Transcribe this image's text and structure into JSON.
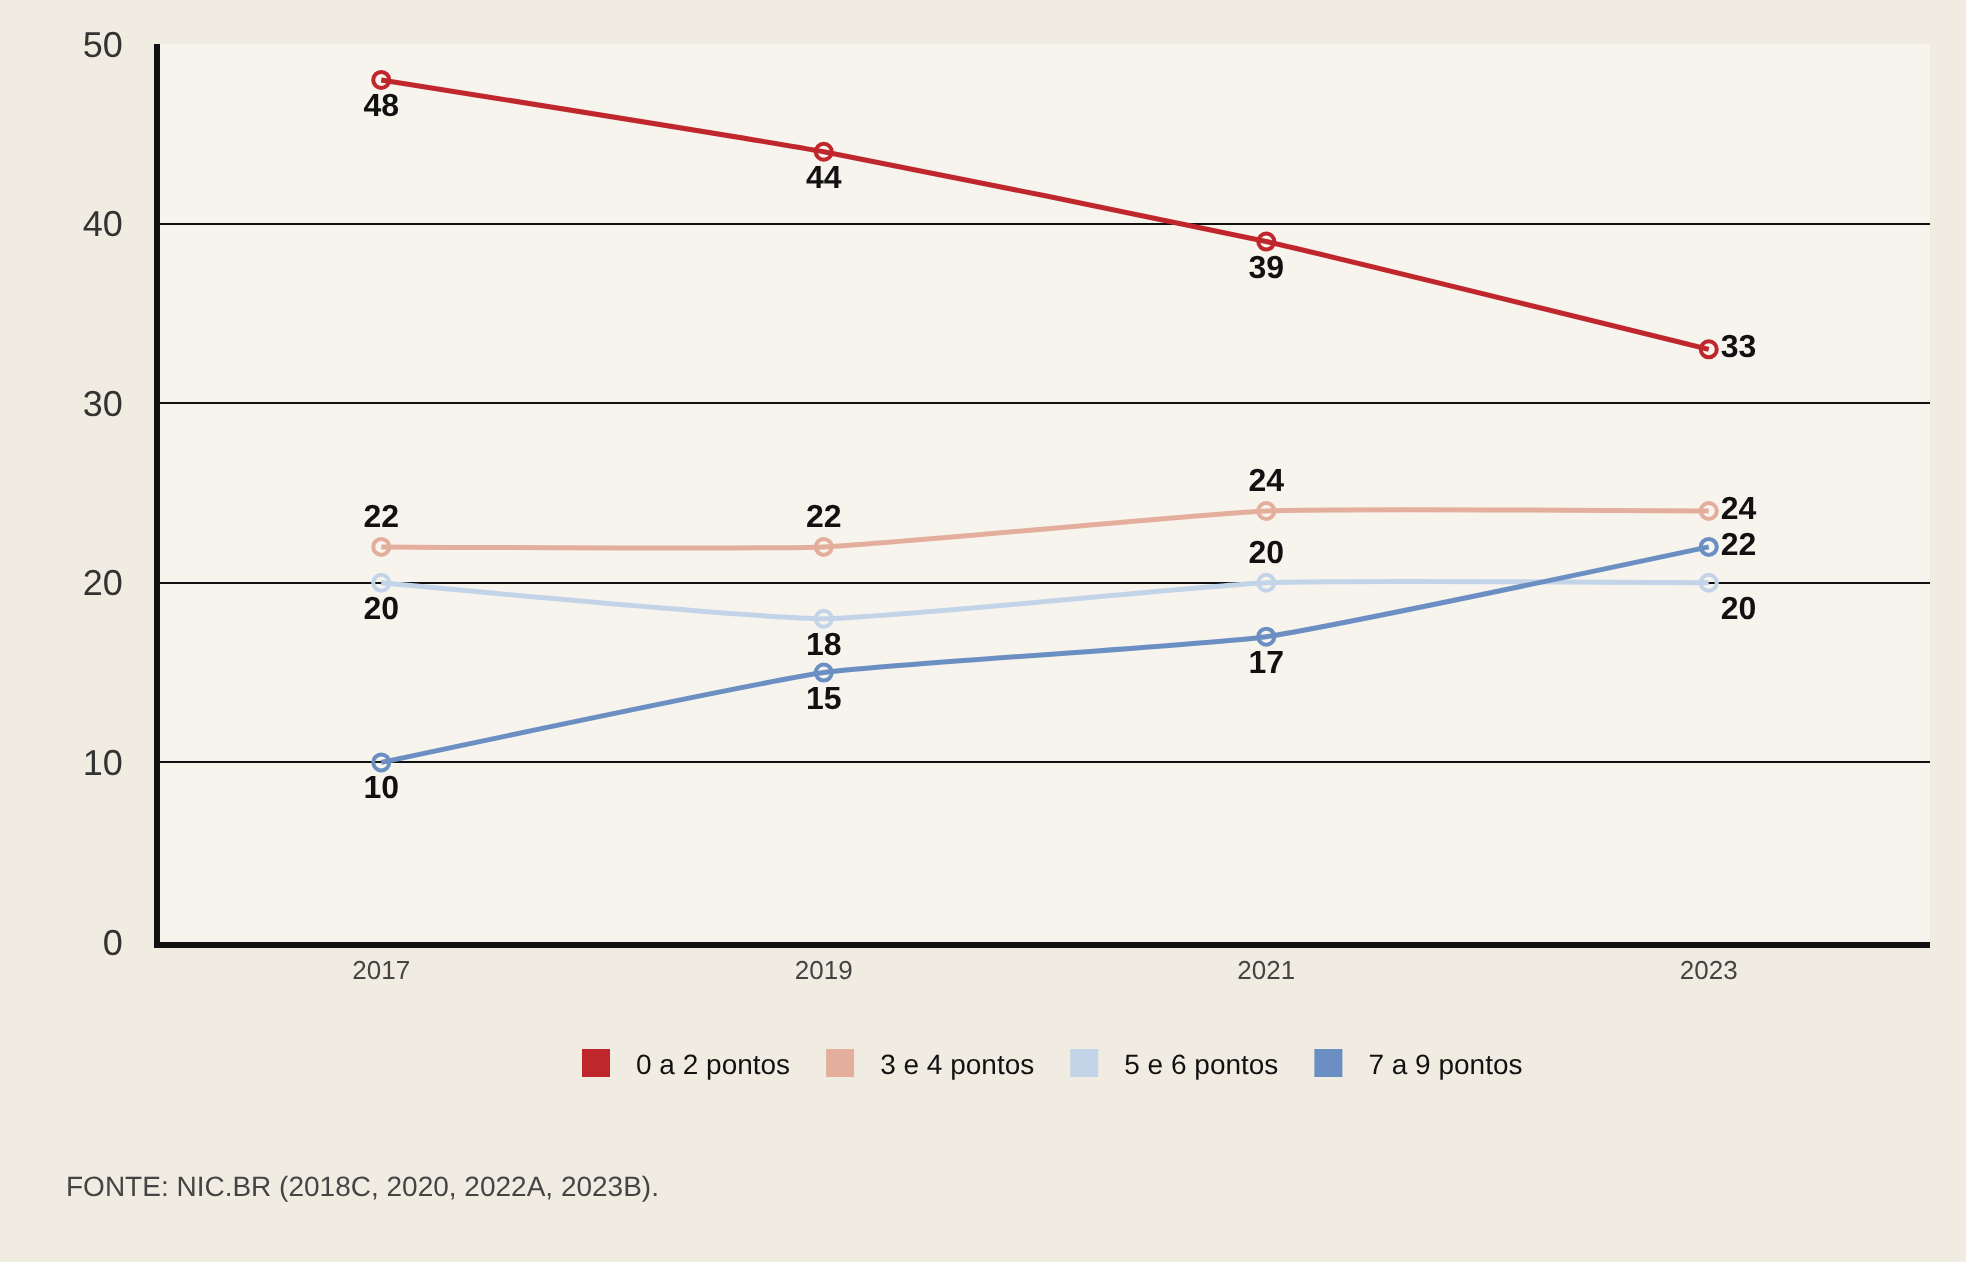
{
  "chart_data": {
    "type": "line",
    "categories": [
      "2017",
      "2019",
      "2021",
      "2023"
    ],
    "series": [
      {
        "name": "0 a 2 pontos",
        "color": "#c0272d",
        "values": [
          48,
          44,
          39,
          33
        ]
      },
      {
        "name": "3 e 4 pontos",
        "color": "#e4ae9c",
        "values": [
          22,
          22,
          24,
          24
        ]
      },
      {
        "name": "5 e 6 pontos",
        "color": "#c3d4e8",
        "values": [
          20,
          18,
          20,
          20
        ]
      },
      {
        "name": "7 a 9 pontos",
        "color": "#6b8fc2",
        "values": [
          10,
          15,
          17,
          22
        ]
      }
    ],
    "ylim": [
      0,
      50
    ],
    "yticks": [
      0,
      10,
      20,
      30,
      40,
      50
    ],
    "grid": "y",
    "legend": "bottom",
    "marker": "circle",
    "line_style": "solid",
    "data_labels": true,
    "annotations": [
      "FONTE: NIC.BR (2018C, 2020, 2022A, 2023B)."
    ]
  }
}
